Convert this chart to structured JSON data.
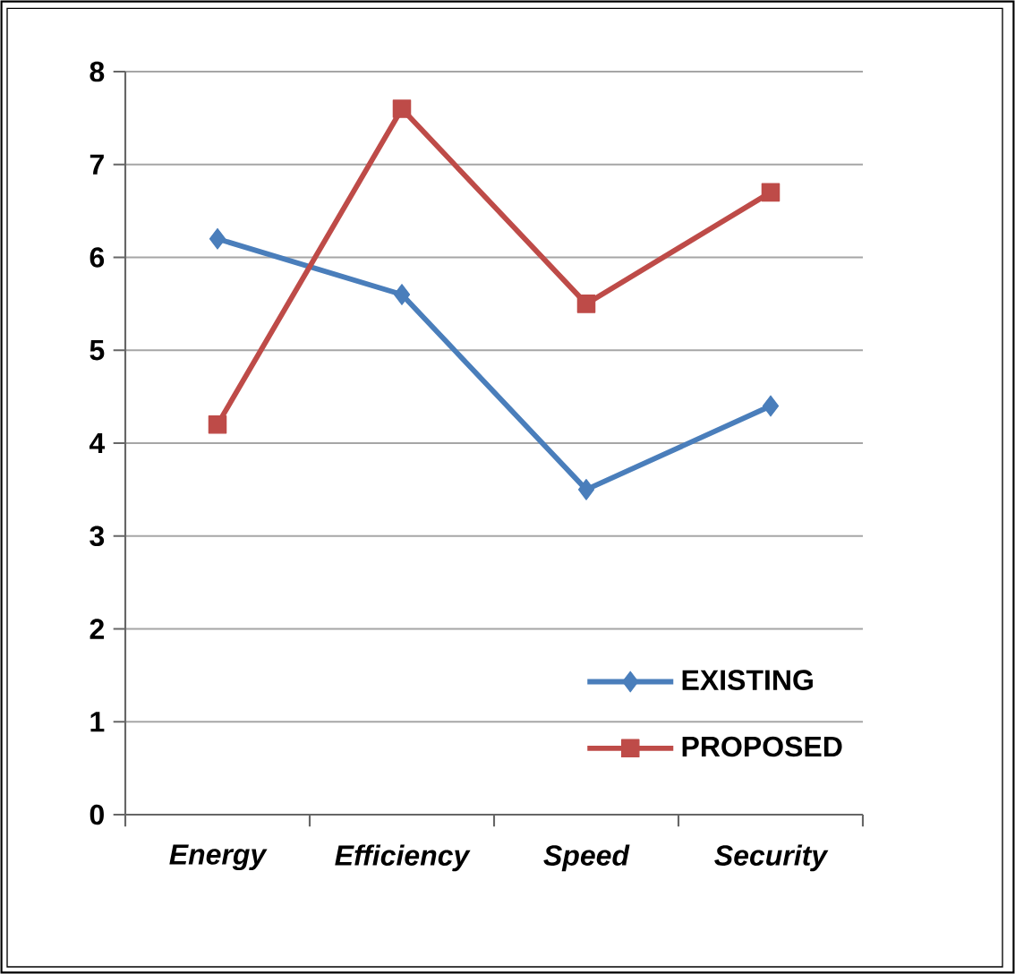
{
  "chart_data": {
    "type": "line",
    "categories": [
      "Energy",
      "Efficiency",
      "Speed",
      "Security"
    ],
    "series": [
      {
        "name": "EXISTING",
        "color": "#4a7ebb",
        "marker": "diamond",
        "values": [
          6.2,
          5.6,
          3.5,
          4.4
        ]
      },
      {
        "name": "PROPOSED",
        "color": "#be4b48",
        "marker": "square",
        "values": [
          4.2,
          7.6,
          5.5,
          6.7
        ]
      }
    ],
    "ylim": [
      0,
      8
    ],
    "yticks": [
      0,
      1,
      2,
      3,
      4,
      5,
      6,
      7,
      8
    ],
    "grid": "y",
    "legend": "bottom right",
    "line_style": "solid"
  }
}
